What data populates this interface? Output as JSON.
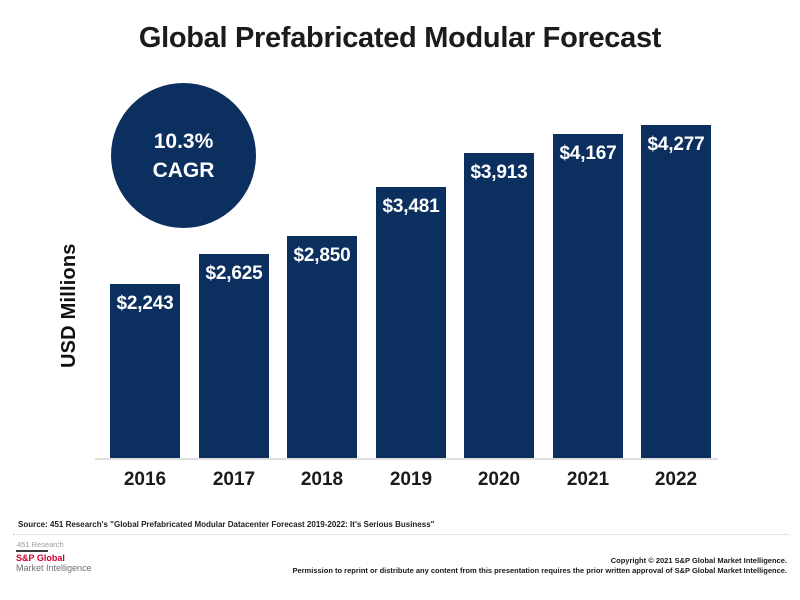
{
  "title": "Global Prefabricated Modular Forecast",
  "cagr_badge": {
    "line1": "10.3%",
    "line2": "CAGR"
  },
  "chart_data": {
    "type": "bar",
    "title": "Global Prefabricated Modular Forecast",
    "categories": [
      "2016",
      "2017",
      "2018",
      "2019",
      "2020",
      "2021",
      "2022"
    ],
    "values": [
      2243,
      2625,
      2850,
      3481,
      3913,
      4167,
      4277
    ],
    "bar_labels": [
      "$2,243",
      "$2,625",
      "$2,850",
      "$3,481",
      "$3,913",
      "$4,167",
      "$4,277"
    ],
    "xlabel": "",
    "ylabel": "USD Millions",
    "ylim": [
      0,
      4277
    ],
    "grid": false,
    "legend": false,
    "annotation": "10.3% CAGR",
    "bar_color": "#0b2f5e",
    "label_position": "inside-top"
  },
  "footer": {
    "source": "Source: 451 Research's \"Global Prefabricated Modular Datacenter Forecast 2019-2022: It's Serious Business\"",
    "brand_451": "451 Research",
    "brand_sp": "S&P Global",
    "brand_mi": "Market Intelligence",
    "copyright_line1": "Copyright © 2021 S&P Global Market Intelligence.",
    "copyright_line2": "Permission to reprint or distribute any content from this presentation requires the prior written approval of S&P Global Market Intelligence."
  },
  "colors": {
    "navy": "#0b2f5e",
    "red": "#d0002c",
    "baseline_gray": "#dedede"
  }
}
